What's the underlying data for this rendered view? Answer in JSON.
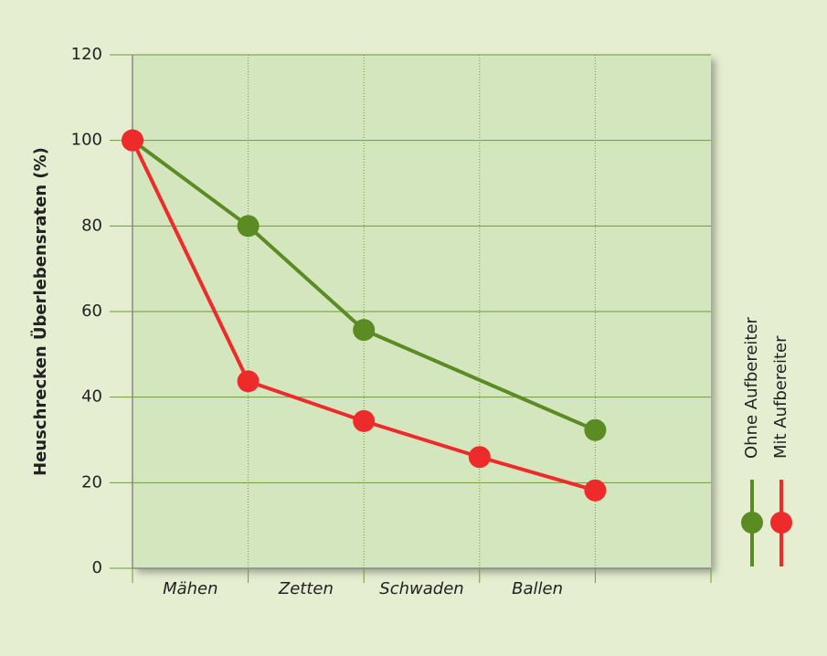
{
  "chart_data": {
    "type": "line",
    "y_label": "Heuschrecken Überlebensraten (%)",
    "categories": [
      "Mähen",
      "Zetten",
      "Schwaden",
      "Ballen"
    ],
    "xlim": [
      0,
      5
    ],
    "xticks": [
      0,
      1,
      2,
      3,
      4,
      5
    ],
    "ylim": [
      0,
      120
    ],
    "yticks": [
      0,
      20,
      40,
      60,
      80,
      100,
      120
    ],
    "grid": true,
    "series": [
      {
        "name": "Ohne Aufbereiter",
        "color": "#5b8c24",
        "x": [
          0,
          1,
          2,
          4
        ],
        "values": [
          100,
          80,
          55.7,
          32.3
        ]
      },
      {
        "name": "Mit Aufbereiter",
        "color": "#ee2b2b",
        "x": [
          0,
          1,
          2,
          3,
          4
        ],
        "values": [
          100,
          43.7,
          34.4,
          26,
          18.2
        ]
      }
    ]
  }
}
